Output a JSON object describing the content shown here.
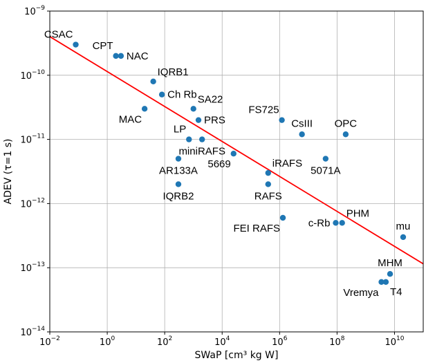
{
  "chart_data": {
    "type": "scatter",
    "title": "",
    "xlabel": "SWaP [cm³ kg W]",
    "ylabel": "ADEV (τ=1 s)",
    "xscale": "log",
    "yscale": "log",
    "xlim": [
      0.01,
      100000000000
    ],
    "ylim": [
      1e-14,
      1e-09
    ],
    "grid": true,
    "x_ticks": [
      {
        "base": "10",
        "exp": "−2",
        "value": 0.01
      },
      {
        "base": "10",
        "exp": "0",
        "value": 1
      },
      {
        "base": "10",
        "exp": "2",
        "value": 100
      },
      {
        "base": "10",
        "exp": "4",
        "value": 10000
      },
      {
        "base": "10",
        "exp": "6",
        "value": 1000000
      },
      {
        "base": "10",
        "exp": "8",
        "value": 100000000
      },
      {
        "base": "10",
        "exp": "10",
        "value": 10000000000
      }
    ],
    "y_ticks": [
      {
        "base": "10",
        "exp": "−14",
        "value": 1e-14
      },
      {
        "base": "10",
        "exp": "−13",
        "value": 1e-13
      },
      {
        "base": "10",
        "exp": "−12",
        "value": 1e-12
      },
      {
        "base": "10",
        "exp": "−11",
        "value": 1e-11
      },
      {
        "base": "10",
        "exp": "−10",
        "value": 1e-10
      },
      {
        "base": "10",
        "exp": "−9",
        "value": 1e-09
      }
    ],
    "marker_color": "#1f77b4",
    "points": [
      {
        "label": "CSAC",
        "x": 0.08,
        "y": 3e-10,
        "label_pos": "ul"
      },
      {
        "label": "CPT",
        "x": 2,
        "y": 2e-10,
        "label_pos": "ul"
      },
      {
        "label": "NAC",
        "x": 3,
        "y": 2e-10,
        "label_pos": "r"
      },
      {
        "label": "IQRB1",
        "x": 40,
        "y": 8e-11,
        "label_pos": "ur"
      },
      {
        "label": "Ch Rb",
        "x": 80,
        "y": 5e-11,
        "label_pos": "r"
      },
      {
        "label": "MAC",
        "x": 20,
        "y": 3e-11,
        "label_pos": "dl"
      },
      {
        "label": "SA22",
        "x": 1000,
        "y": 3e-11,
        "label_pos": "ur"
      },
      {
        "label": "PRS",
        "x": 1500,
        "y": 2e-11,
        "label_pos": "r"
      },
      {
        "label": "LP",
        "x": 700,
        "y": 1e-11,
        "label_pos": "ul"
      },
      {
        "label": "miniRAFS",
        "x": 2000,
        "y": 1e-11,
        "label_pos": "d"
      },
      {
        "label": "AR133A",
        "x": 300,
        "y": 5e-12,
        "label_pos": "dc"
      },
      {
        "label": "IQRB2",
        "x": 300,
        "y": 2e-12,
        "label_pos": "dc"
      },
      {
        "label": "5669",
        "x": 25000,
        "y": 6e-12,
        "label_pos": "dl"
      },
      {
        "label": "FS725",
        "x": 1200000,
        "y": 2e-11,
        "label_pos": "ul"
      },
      {
        "label": "CsIII",
        "x": 6000000,
        "y": 1.2e-11,
        "label_pos": "u"
      },
      {
        "label": "OPC",
        "x": 200000000,
        "y": 1.2e-11,
        "label_pos": "u"
      },
      {
        "label": "iRAFS",
        "x": 400000,
        "y": 3e-12,
        "label_pos": "ur"
      },
      {
        "label": "5071A",
        "x": 40000000,
        "y": 5e-12,
        "label_pos": "d"
      },
      {
        "label": "RAFS",
        "x": 400000,
        "y": 2e-12,
        "label_pos": "d"
      },
      {
        "label": "FEI RAFS",
        "x": 1300000,
        "y": 6e-13,
        "label_pos": "dl"
      },
      {
        "label": "c-Rb",
        "x": 90000000,
        "y": 5e-13,
        "label_pos": "l"
      },
      {
        "label": "PHM",
        "x": 150000000,
        "y": 5e-13,
        "label_pos": "ur"
      },
      {
        "label": "mu",
        "x": 20000000000,
        "y": 3e-13,
        "label_pos": "u"
      },
      {
        "label": "MHM",
        "x": 7000000000,
        "y": 8e-14,
        "label_pos": "u"
      },
      {
        "label": "Vremya",
        "x": 3500000000,
        "y": 6e-14,
        "label_pos": "dl"
      },
      {
        "label": "T4",
        "x": 5000000000,
        "y": 6e-14,
        "label_pos": "dr"
      }
    ],
    "fit_line": {
      "color": "#ff0000",
      "points": [
        {
          "x": 0.01,
          "y": 4e-10
        },
        {
          "x": 100000000000,
          "y": 1.15e-13
        }
      ]
    }
  }
}
